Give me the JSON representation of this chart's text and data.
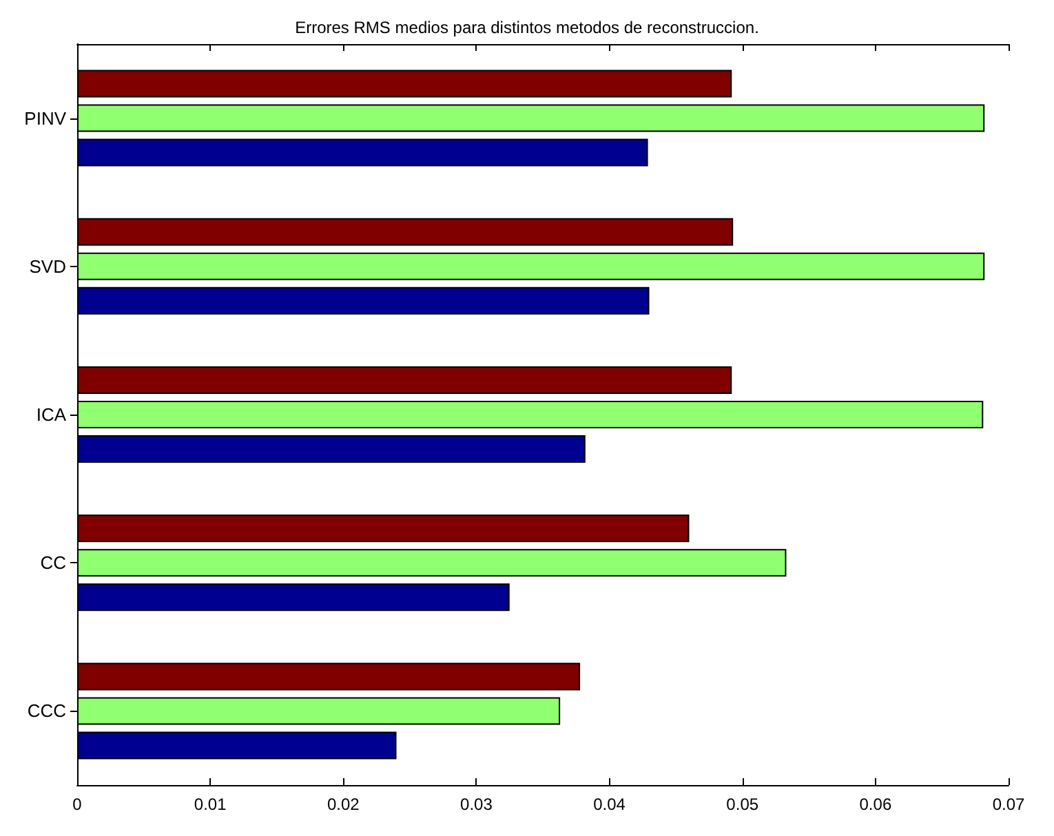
{
  "chart_data": {
    "type": "bar",
    "orientation": "horizontal",
    "title": "Errores RMS medios para distintos metodos de reconstruccion.",
    "categories": [
      "PINV",
      "SVD",
      "ICA",
      "CC",
      "CCC"
    ],
    "series": [
      {
        "color": "#800000",
        "values": [
          0.0492,
          0.0493,
          0.0492,
          0.046,
          0.0378
        ]
      },
      {
        "color": "#90ff70",
        "values": [
          0.0682,
          0.0682,
          0.0681,
          0.0533,
          0.0363
        ]
      },
      {
        "color": "#000090",
        "values": [
          0.0429,
          0.043,
          0.0382,
          0.0325,
          0.024
        ]
      }
    ],
    "xlim": [
      0,
      0.07
    ],
    "xticks": [
      0,
      0.01,
      0.02,
      0.03,
      0.04,
      0.05,
      0.06,
      0.07
    ],
    "grid": false
  }
}
